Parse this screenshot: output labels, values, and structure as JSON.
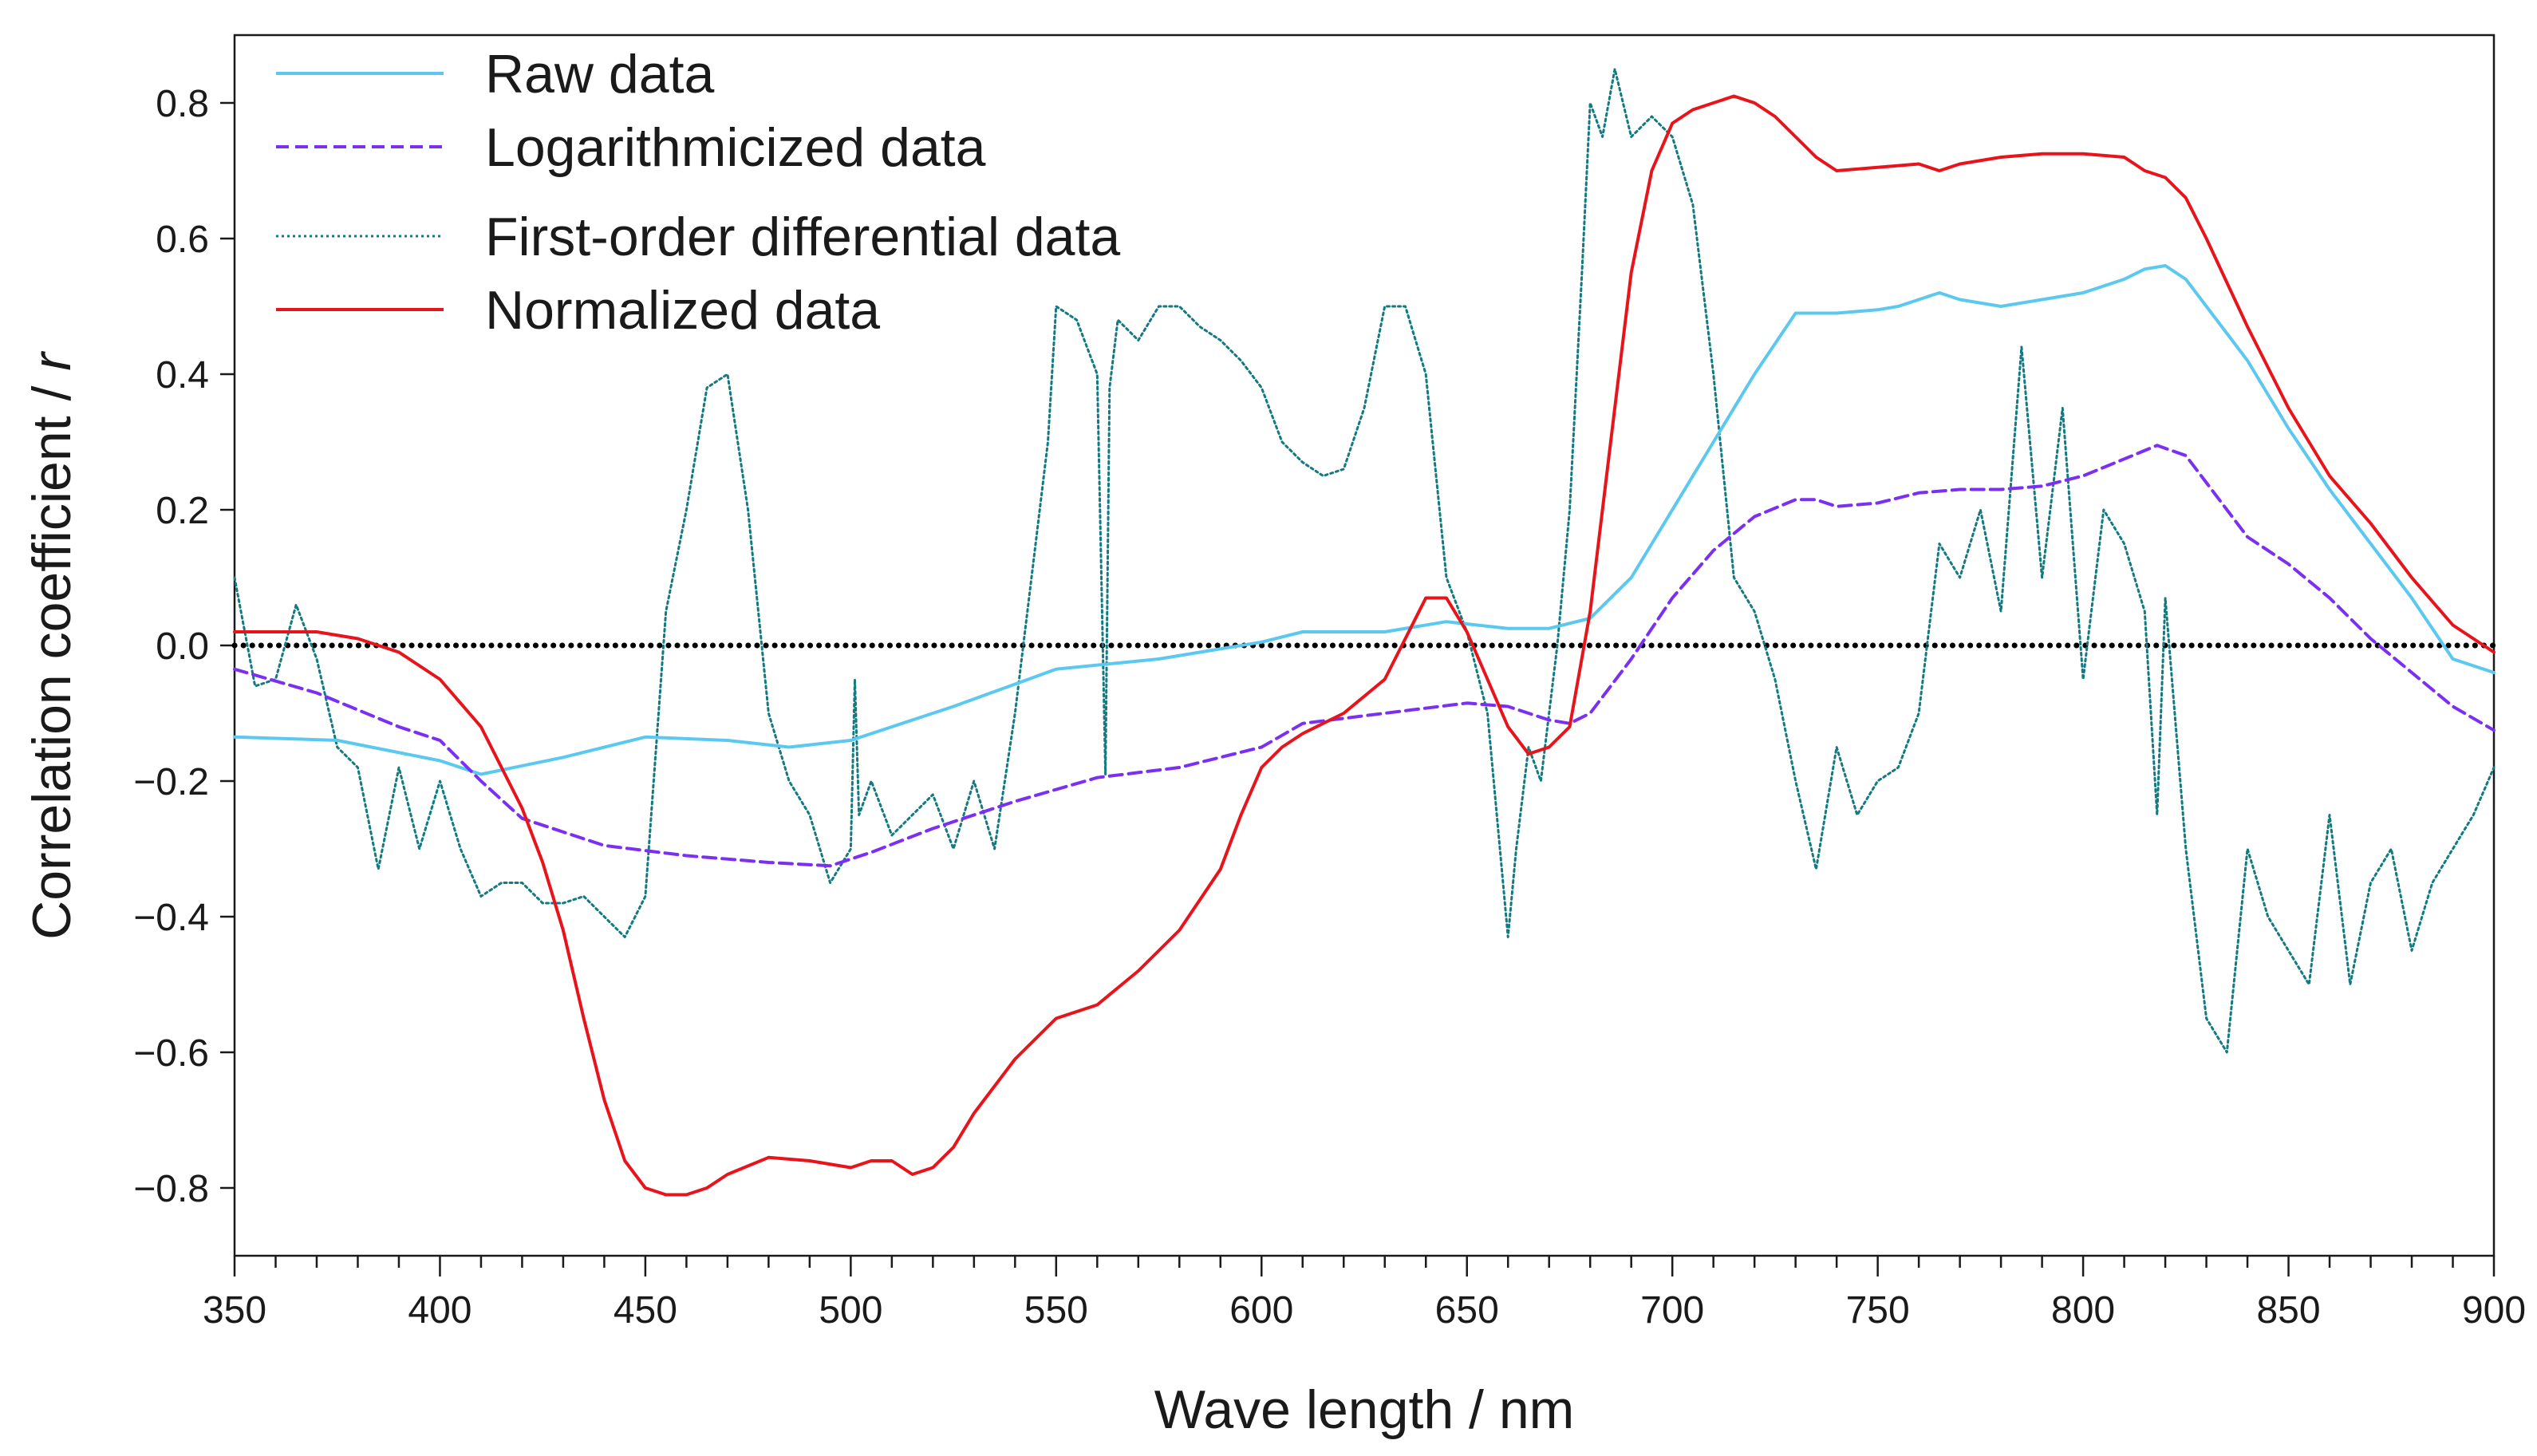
{
  "chart_data": {
    "type": "line",
    "xlabel": "Wave length / nm",
    "ylabel": "Correlation coefficient / ",
    "ylabel_italic": "r",
    "xlim": [
      350,
      900
    ],
    "ylim": [
      -0.9,
      0.9
    ],
    "xticks": [
      350,
      400,
      450,
      500,
      550,
      600,
      650,
      700,
      750,
      800,
      850,
      900
    ],
    "xtick_labels": [
      "350",
      "400",
      "450",
      "500",
      "550",
      "600",
      "650",
      "700",
      "750",
      "800",
      "850",
      "900"
    ],
    "yticks": [
      0.8,
      0.6,
      0.4,
      0.2,
      0.0,
      -0.2,
      -0.4,
      -0.6,
      -0.8
    ],
    "ytick_labels": [
      "0.8",
      "0.6",
      "0.4",
      "0.2",
      "0.0",
      "−0.2",
      "−0.4",
      "−0.6",
      "−0.8"
    ],
    "grid": false,
    "legend_position": "top-left",
    "reference_line": {
      "y": 0.0,
      "style": "dotted",
      "color": "#000000"
    },
    "series": [
      {
        "name": "Raw data",
        "color": "#5bc8f0",
        "style": "solid",
        "x": [
          350,
          375,
          400,
          410,
          430,
          450,
          470,
          485,
          500,
          525,
          550,
          575,
          600,
          610,
          630,
          645,
          660,
          670,
          680,
          690,
          700,
          710,
          720,
          730,
          740,
          750,
          755,
          760,
          765,
          770,
          780,
          790,
          800,
          810,
          815,
          820,
          825,
          830,
          840,
          850,
          860,
          870,
          880,
          890,
          900
        ],
        "y": [
          -0.135,
          -0.14,
          -0.17,
          -0.19,
          -0.165,
          -0.135,
          -0.14,
          -0.15,
          -0.14,
          -0.09,
          -0.035,
          -0.02,
          0.005,
          0.02,
          0.02,
          0.035,
          0.025,
          0.025,
          0.04,
          0.1,
          0.2,
          0.3,
          0.4,
          0.49,
          0.49,
          0.495,
          0.5,
          0.51,
          0.52,
          0.51,
          0.5,
          0.51,
          0.52,
          0.54,
          0.555,
          0.56,
          0.54,
          0.5,
          0.42,
          0.32,
          0.23,
          0.15,
          0.07,
          -0.02,
          -0.04
        ]
      },
      {
        "name": "Logarithmicized data",
        "color": "#7b2ff2",
        "style": "dashed",
        "x": [
          350,
          370,
          390,
          400,
          410,
          420,
          440,
          460,
          480,
          495,
          505,
          520,
          540,
          560,
          580,
          600,
          610,
          630,
          650,
          660,
          670,
          675,
          680,
          690,
          700,
          710,
          720,
          730,
          735,
          740,
          750,
          760,
          770,
          780,
          790,
          800,
          810,
          818,
          825,
          830,
          840,
          850,
          860,
          870,
          880,
          890,
          900
        ],
        "y": [
          -0.035,
          -0.07,
          -0.12,
          -0.14,
          -0.2,
          -0.255,
          -0.295,
          -0.31,
          -0.32,
          -0.325,
          -0.305,
          -0.27,
          -0.23,
          -0.195,
          -0.18,
          -0.15,
          -0.115,
          -0.1,
          -0.085,
          -0.09,
          -0.11,
          -0.115,
          -0.1,
          -0.02,
          0.07,
          0.14,
          0.19,
          0.215,
          0.215,
          0.205,
          0.21,
          0.225,
          0.23,
          0.23,
          0.235,
          0.25,
          0.275,
          0.295,
          0.28,
          0.24,
          0.16,
          0.12,
          0.07,
          0.01,
          -0.04,
          -0.09,
          -0.125
        ]
      },
      {
        "name": "First-order differential data",
        "color": "#127a80",
        "style": "dotted",
        "x": [
          350,
          355,
          360,
          365,
          370,
          375,
          380,
          385,
          390,
          395,
          400,
          405,
          410,
          415,
          420,
          425,
          430,
          435,
          440,
          445,
          450,
          455,
          460,
          465,
          470,
          475,
          480,
          485,
          490,
          495,
          500,
          501,
          502,
          505,
          510,
          515,
          520,
          525,
          530,
          535,
          540,
          545,
          548,
          550,
          555,
          560,
          562,
          563,
          565,
          570,
          575,
          580,
          585,
          590,
          595,
          600,
          605,
          610,
          615,
          620,
          625,
          630,
          635,
          640,
          645,
          650,
          655,
          660,
          662,
          665,
          668,
          672,
          675,
          678,
          680,
          683,
          686,
          690,
          695,
          700,
          705,
          710,
          715,
          720,
          725,
          730,
          735,
          740,
          745,
          750,
          755,
          760,
          765,
          770,
          775,
          780,
          785,
          790,
          795,
          800,
          805,
          810,
          815,
          818,
          820,
          825,
          830,
          835,
          840,
          845,
          850,
          855,
          860,
          865,
          870,
          875,
          880,
          885,
          890,
          895,
          900
        ],
        "y": [
          0.1,
          -0.06,
          -0.05,
          0.06,
          -0.02,
          -0.15,
          -0.18,
          -0.33,
          -0.18,
          -0.3,
          -0.2,
          -0.3,
          -0.37,
          -0.35,
          -0.35,
          -0.38,
          -0.38,
          -0.37,
          -0.4,
          -0.43,
          -0.37,
          0.05,
          0.2,
          0.38,
          0.4,
          0.2,
          -0.1,
          -0.2,
          -0.25,
          -0.35,
          -0.3,
          -0.05,
          -0.25,
          -0.2,
          -0.28,
          -0.25,
          -0.22,
          -0.3,
          -0.2,
          -0.3,
          -0.1,
          0.15,
          0.3,
          0.5,
          0.48,
          0.4,
          -0.19,
          0.38,
          0.48,
          0.45,
          0.5,
          0.5,
          0.47,
          0.45,
          0.42,
          0.38,
          0.3,
          0.27,
          0.25,
          0.26,
          0.35,
          0.5,
          0.5,
          0.4,
          0.1,
          0.02,
          -0.1,
          -0.43,
          -0.3,
          -0.15,
          -0.2,
          0.0,
          0.2,
          0.55,
          0.8,
          0.75,
          0.85,
          0.75,
          0.78,
          0.75,
          0.65,
          0.4,
          0.1,
          0.05,
          -0.05,
          -0.2,
          -0.33,
          -0.15,
          -0.25,
          -0.2,
          -0.18,
          -0.1,
          0.15,
          0.1,
          0.2,
          0.05,
          0.44,
          0.1,
          0.35,
          -0.05,
          0.2,
          0.15,
          0.05,
          -0.25,
          0.07,
          -0.3,
          -0.55,
          -0.6,
          -0.3,
          -0.4,
          -0.45,
          -0.5,
          -0.25,
          -0.5,
          -0.35,
          -0.3,
          -0.45,
          -0.35,
          -0.3,
          -0.25,
          -0.18
        ]
      },
      {
        "name": "Normalized data",
        "color": "#e8141c",
        "style": "solid",
        "x": [
          350,
          360,
          370,
          380,
          390,
          400,
          410,
          420,
          425,
          430,
          435,
          440,
          445,
          450,
          455,
          460,
          465,
          470,
          480,
          490,
          500,
          505,
          510,
          515,
          520,
          525,
          530,
          540,
          550,
          560,
          570,
          580,
          590,
          595,
          600,
          605,
          610,
          620,
          630,
          635,
          640,
          645,
          650,
          655,
          660,
          665,
          670,
          675,
          680,
          685,
          690,
          695,
          700,
          705,
          710,
          715,
          720,
          725,
          730,
          735,
          740,
          750,
          760,
          765,
          770,
          780,
          790,
          800,
          810,
          815,
          820,
          825,
          830,
          840,
          850,
          860,
          870,
          880,
          890,
          900
        ],
        "y": [
          0.02,
          0.02,
          0.02,
          0.01,
          -0.01,
          -0.05,
          -0.12,
          -0.24,
          -0.32,
          -0.42,
          -0.55,
          -0.67,
          -0.76,
          -0.8,
          -0.81,
          -0.81,
          -0.8,
          -0.78,
          -0.755,
          -0.76,
          -0.77,
          -0.76,
          -0.76,
          -0.78,
          -0.77,
          -0.74,
          -0.69,
          -0.61,
          -0.55,
          -0.53,
          -0.48,
          -0.42,
          -0.33,
          -0.25,
          -0.18,
          -0.15,
          -0.13,
          -0.1,
          -0.05,
          0.01,
          0.07,
          0.07,
          0.02,
          -0.05,
          -0.12,
          -0.16,
          -0.15,
          -0.12,
          0.05,
          0.3,
          0.55,
          0.7,
          0.77,
          0.79,
          0.8,
          0.81,
          0.8,
          0.78,
          0.75,
          0.72,
          0.7,
          0.705,
          0.71,
          0.7,
          0.71,
          0.72,
          0.725,
          0.725,
          0.72,
          0.7,
          0.69,
          0.66,
          0.6,
          0.47,
          0.35,
          0.25,
          0.18,
          0.1,
          0.03,
          -0.01
        ]
      }
    ]
  }
}
